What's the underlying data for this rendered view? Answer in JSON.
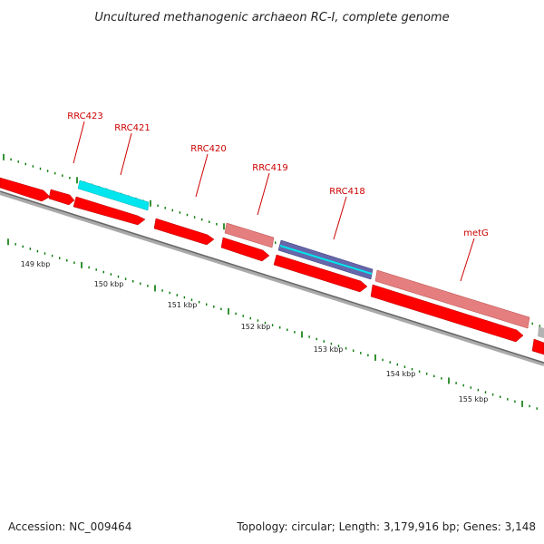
{
  "title": "Uncultured methanogenic archaeon RC-I, complete genome",
  "footer": {
    "accession": "Accession: NC_009464",
    "topology": "Topology: circular; Length: 3,179,916 bp; Genes: 3,148"
  },
  "kbp_labels": [
    "149 kbp",
    "150 kbp",
    "151 kbp",
    "152 kbp",
    "153 kbp",
    "154 kbp",
    "155 kbp"
  ],
  "genes": [
    {
      "name": "RRC423"
    },
    {
      "name": "RRC421"
    },
    {
      "name": "RRC420"
    },
    {
      "name": "RRC419"
    },
    {
      "name": "RRC418"
    },
    {
      "name": "metG"
    }
  ],
  "colors": {
    "cds": "#ff0000",
    "feature_pink": "#e57f7f",
    "feature_cyan": "#00e5ee",
    "feature_purple": "#6666aa",
    "feature_gray": "#b3b3b3",
    "backbone": "#888888",
    "tick": "#007700",
    "label": "#cc0000"
  }
}
